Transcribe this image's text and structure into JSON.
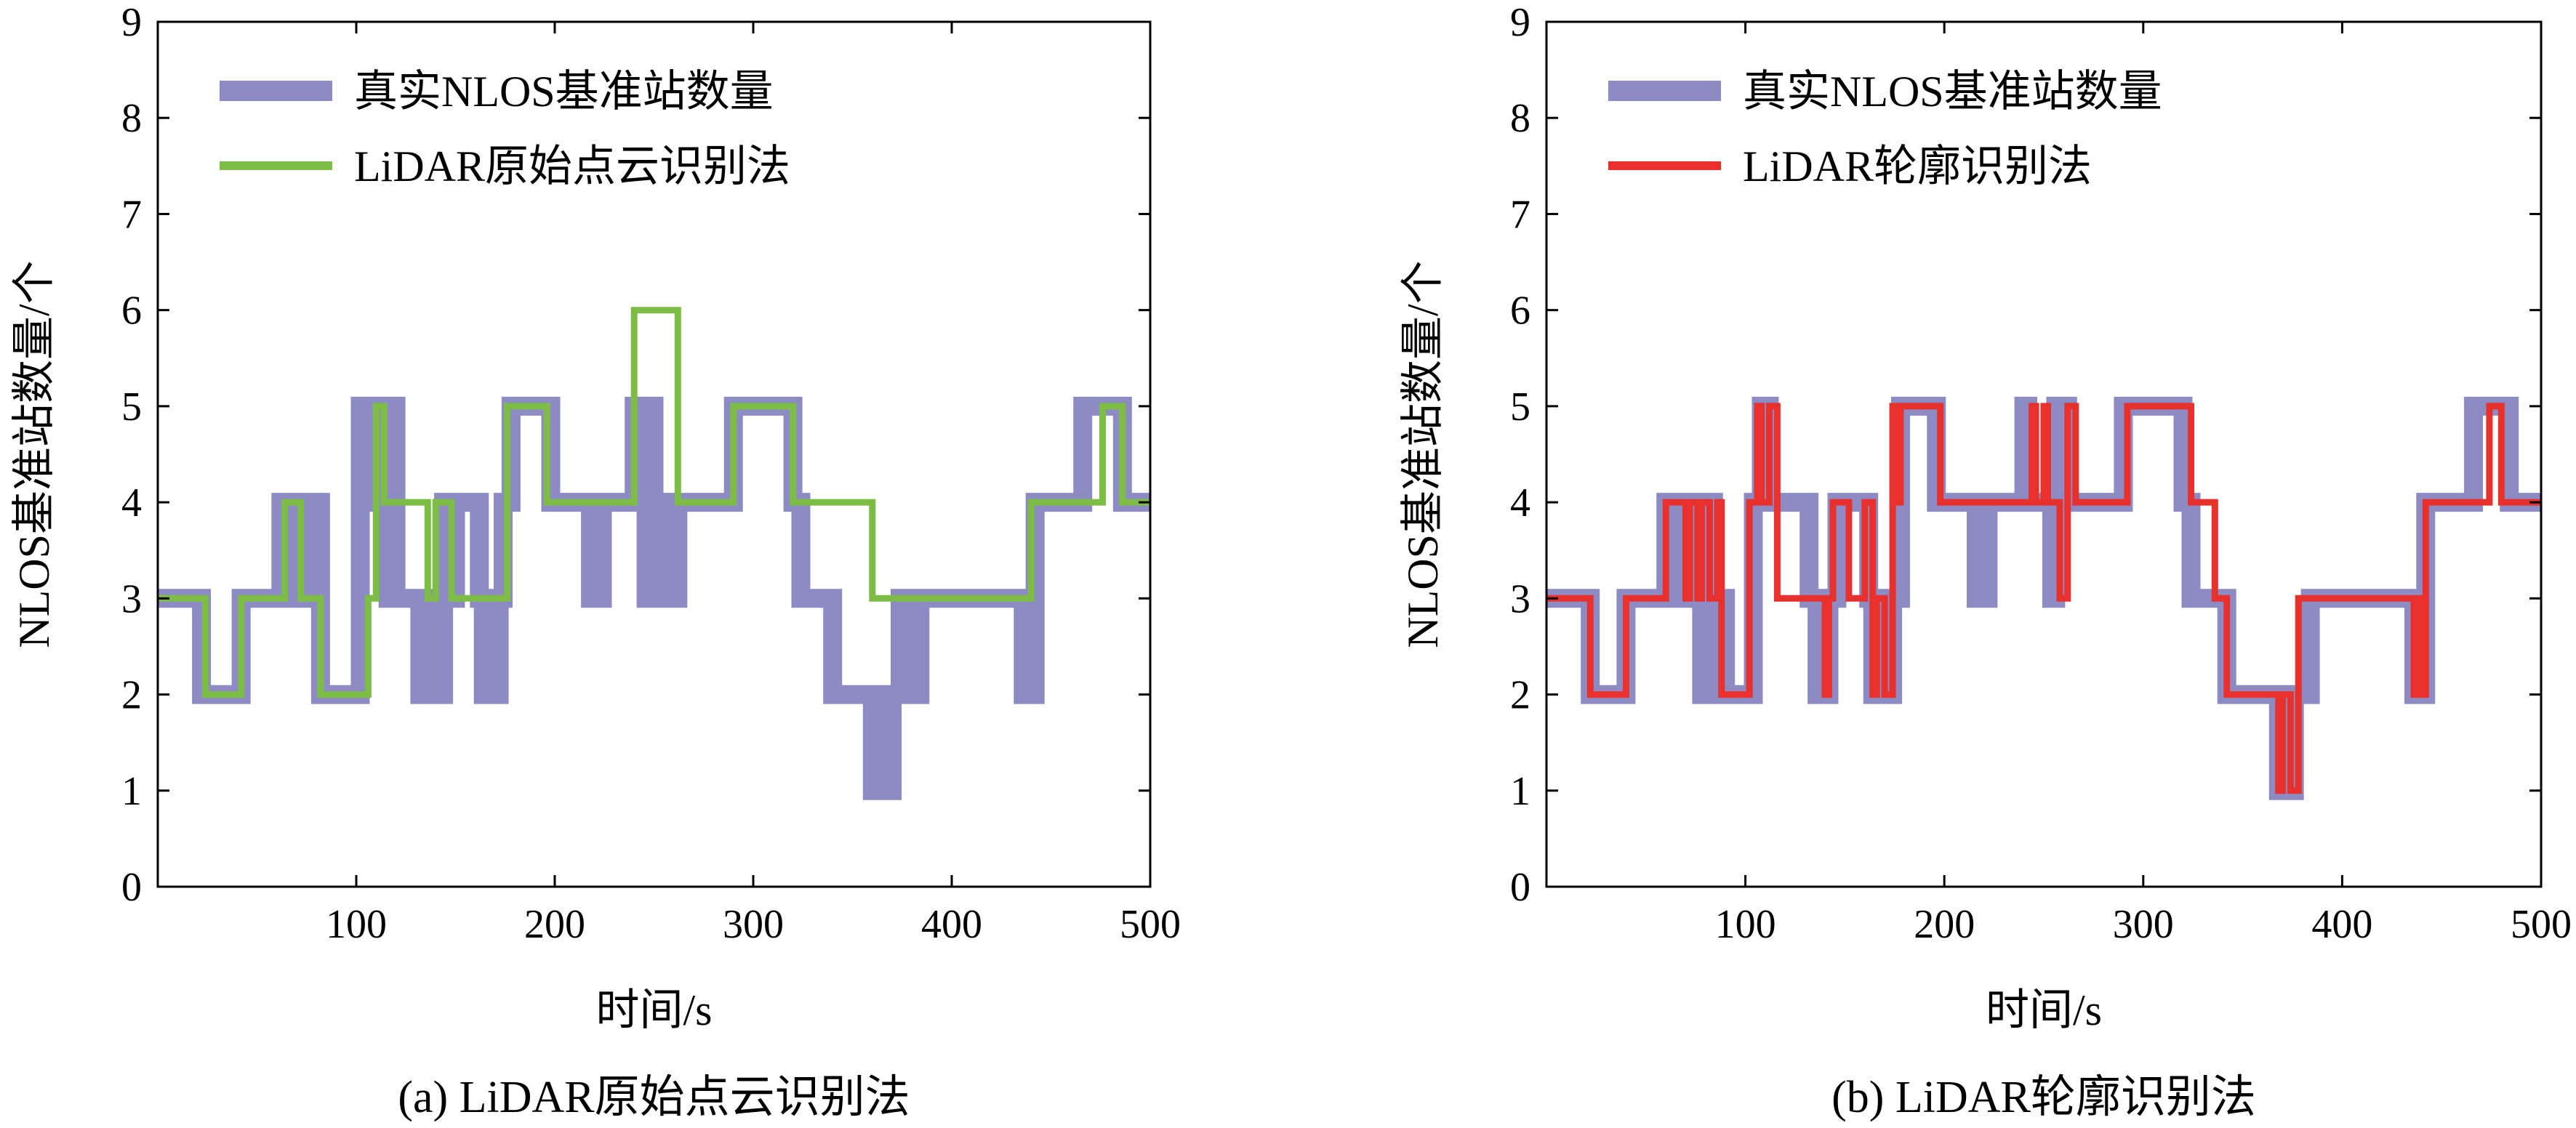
{
  "figure": {
    "panels": [
      {
        "caption": "(a) LiDAR原始点云识别法",
        "xlabel": "时间/s",
        "ylabel": "NLOS基准站数量/个",
        "legend": [
          {
            "label": "真实NLOS基准站数量",
            "color": "#8d8bc4"
          },
          {
            "label": "LiDAR原始点云识别法",
            "color": "#7dbd45"
          }
        ]
      },
      {
        "caption": "(b) LiDAR轮廓识别法",
        "xlabel": "时间/s",
        "ylabel": "NLOS基准站数量/个",
        "legend": [
          {
            "label": "真实NLOS基准站数量",
            "color": "#8d8bc4"
          },
          {
            "label": "LiDAR轮廓识别法",
            "color": "#e8312d"
          }
        ]
      }
    ]
  },
  "chart_data": [
    {
      "type": "line",
      "step": true,
      "caption": "(a) LiDAR原始点云识别法",
      "xlabel": "时间/s",
      "ylabel": "NLOS基准站数量/个",
      "xlim": [
        0,
        500
      ],
      "ylim": [
        0,
        9
      ],
      "xticks": [
        100,
        200,
        300,
        400,
        500
      ],
      "yticks": [
        0,
        1,
        2,
        3,
        4,
        5,
        6,
        7,
        8,
        9
      ],
      "grid": false,
      "legend_position": "top-left",
      "series": [
        {
          "name": "真实NLOS基准站数量",
          "color": "#8d8bc4",
          "x": [
            0,
            22,
            42,
            62,
            66,
            68,
            74,
            78,
            82,
            102,
            104,
            106,
            110,
            112,
            116,
            118,
            120,
            132,
            134,
            136,
            140,
            142,
            144,
            148,
            150,
            162,
            164,
            166,
            170,
            172,
            174,
            178,
            198,
            218,
            220,
            222,
            224,
            226,
            240,
            242,
            246,
            248,
            250,
            252,
            254,
            256,
            260,
            262,
            266,
            290,
            320,
            324,
            330,
            340,
            360,
            362,
            364,
            366,
            368,
            370,
            374,
            378,
            380,
            382,
            384,
            386,
            436,
            438,
            440,
            442,
            444,
            466,
            486,
            490,
            500
          ],
          "y": [
            3,
            2,
            3,
            4,
            3,
            4,
            3,
            4,
            2,
            5,
            4,
            5,
            4,
            5,
            3,
            5,
            3,
            2,
            3,
            2,
            3,
            2,
            4,
            3,
            4,
            3,
            2,
            3,
            2,
            3,
            4,
            5,
            4,
            3,
            4,
            3,
            4,
            4,
            5,
            4,
            3,
            5,
            3,
            4,
            3,
            4,
            3,
            4,
            4,
            5,
            4,
            3,
            3,
            2,
            1,
            2,
            1,
            2,
            1,
            2,
            3,
            2,
            3,
            2,
            3,
            3,
            2,
            3,
            2,
            4,
            4,
            5,
            4,
            4,
            4
          ]
        },
        {
          "name": "LiDAR原始点云识别法",
          "color": "#7dbd45",
          "x": [
            0,
            24,
            42,
            64,
            72,
            82,
            106,
            110,
            114,
            136,
            140,
            148,
            164,
            176,
            196,
            240,
            262,
            290,
            320,
            332,
            360,
            440,
            466,
            476,
            486,
            500
          ],
          "y": [
            3,
            2,
            3,
            4,
            3,
            2,
            3,
            5,
            4,
            3,
            4,
            3,
            3,
            5,
            4,
            6,
            4,
            5,
            4,
            4,
            3,
            4,
            4,
            5,
            4,
            4
          ]
        }
      ]
    },
    {
      "type": "line",
      "step": true,
      "caption": "(b) LiDAR轮廓识别法",
      "xlabel": "时间/s",
      "ylabel": "NLOS基准站数量/个",
      "xlim": [
        0,
        500
      ],
      "ylim": [
        0,
        9
      ],
      "xticks": [
        100,
        200,
        300,
        400,
        500
      ],
      "yticks": [
        0,
        1,
        2,
        3,
        4,
        5,
        6,
        7,
        8,
        9
      ],
      "grid": false,
      "legend_position": "top-left",
      "series": [
        {
          "name": "真实NLOS基准站数量",
          "color": "#8d8bc4",
          "x": [
            0,
            22,
            40,
            60,
            64,
            66,
            70,
            74,
            78,
            82,
            84,
            90,
            104,
            108,
            112,
            132,
            136,
            142,
            146,
            162,
            164,
            166,
            172,
            174,
            178,
            196,
            216,
            218,
            220,
            222,
            224,
            240,
            242,
            246,
            254,
            256,
            262,
            266,
            290,
            316,
            320,
            324,
            334,
            342,
            368,
            370,
            374,
            376,
            380,
            384,
            436,
            438,
            440,
            442,
            444,
            466,
            484,
            488,
            500
          ],
          "y": [
            3,
            2,
            3,
            4,
            3,
            4,
            3,
            4,
            2,
            4,
            3,
            2,
            4,
            5,
            4,
            3,
            2,
            3,
            4,
            3,
            2,
            3,
            2,
            3,
            5,
            4,
            3,
            4,
            3,
            4,
            4,
            5,
            4,
            4,
            3,
            5,
            4,
            4,
            5,
            5,
            4,
            3,
            3,
            2,
            1,
            2,
            1,
            2,
            2,
            3,
            2,
            3,
            2,
            4,
            4,
            5,
            4,
            4,
            4
          ]
        },
        {
          "name": "LiDAR轮廓识别法",
          "color": "#e8312d",
          "x": [
            0,
            22,
            40,
            60,
            70,
            72,
            76,
            78,
            82,
            86,
            88,
            102,
            106,
            108,
            112,
            116,
            132,
            140,
            142,
            144,
            150,
            152,
            160,
            164,
            166,
            170,
            174,
            176,
            178,
            194,
            198,
            216,
            244,
            246,
            250,
            252,
            258,
            262,
            266,
            292,
            318,
            324,
            336,
            342,
            368,
            370,
            374,
            378,
            380,
            436,
            438,
            440,
            442,
            464,
            470,
            474,
            480,
            486,
            500
          ],
          "y": [
            3,
            2,
            3,
            4,
            3,
            4,
            3,
            4,
            3,
            4,
            2,
            4,
            5,
            4,
            5,
            3,
            3,
            2,
            3,
            4,
            4,
            3,
            4,
            2,
            3,
            2,
            5,
            4,
            5,
            5,
            4,
            4,
            5,
            4,
            5,
            4,
            3,
            5,
            4,
            5,
            5,
            4,
            3,
            2,
            1,
            2,
            1,
            3,
            3,
            2,
            3,
            2,
            4,
            4,
            4,
            5,
            4,
            4,
            4
          ]
        }
      ]
    }
  ]
}
